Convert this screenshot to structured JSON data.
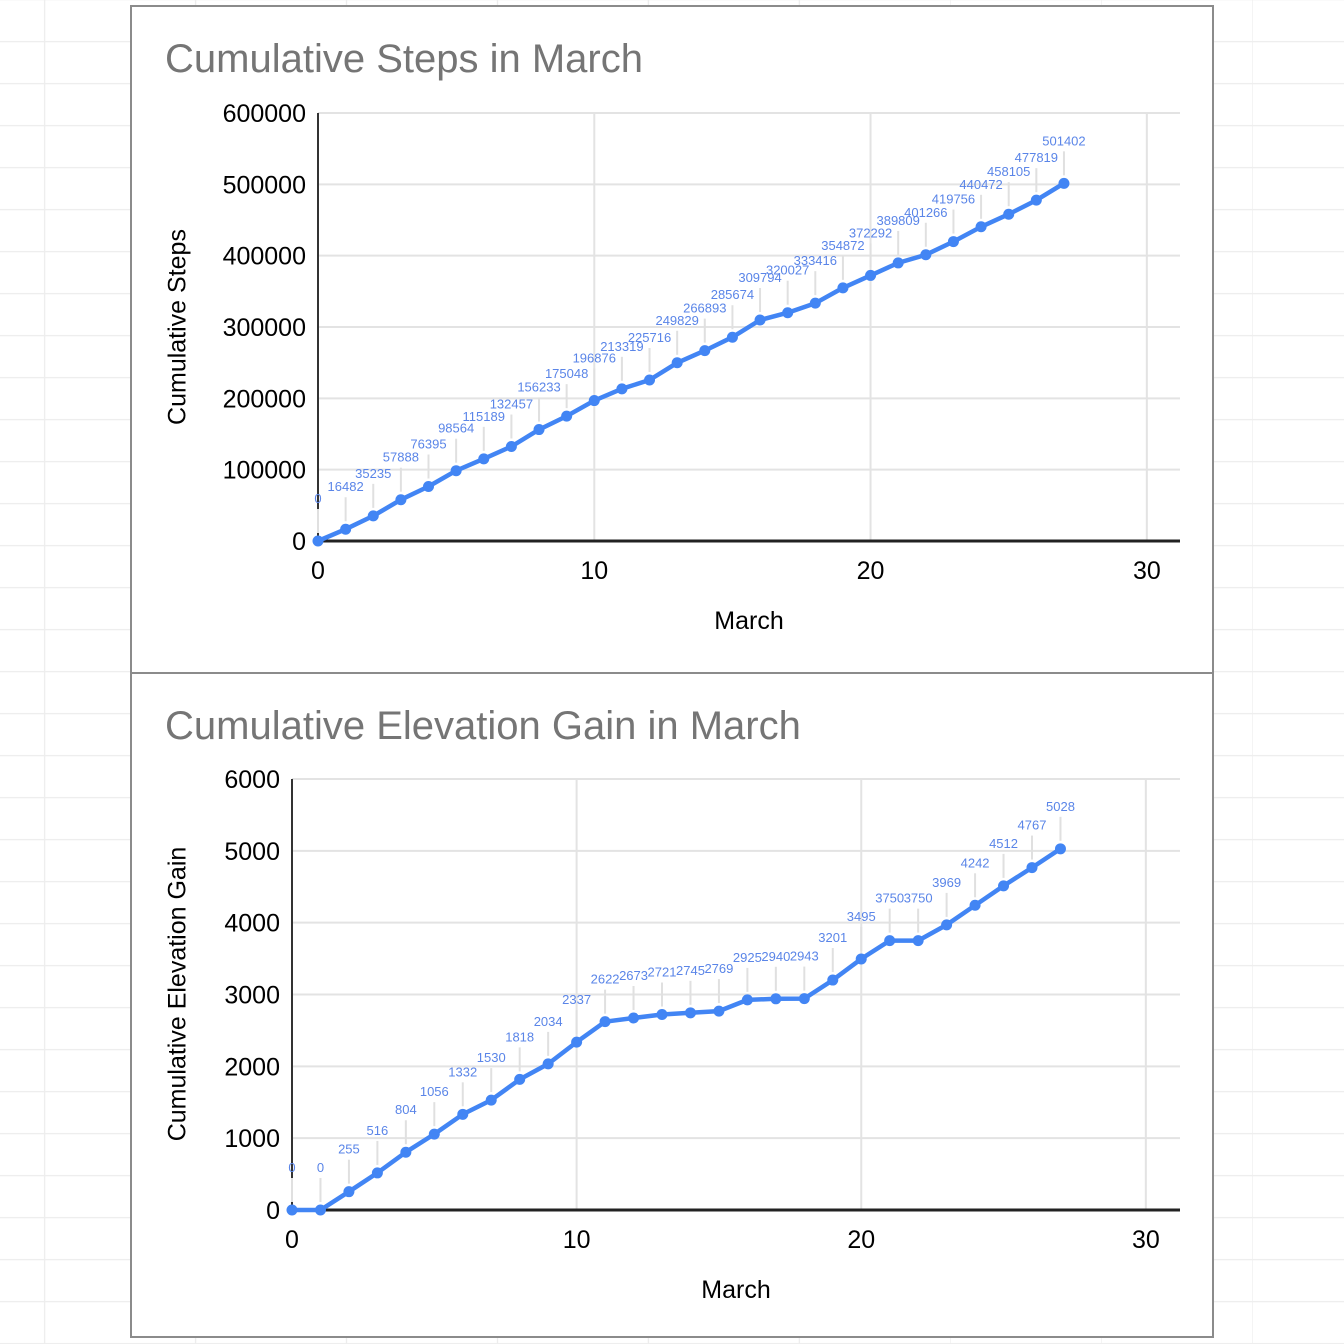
{
  "styles": {
    "series_color": "#4285f4",
    "data_label_color": "#5a85e8",
    "title_color": "#757575",
    "gridline_color": "#e3e3e3",
    "leader_line_color": "#e0e0e0",
    "axis_line_color": "#333333",
    "tick_label_color": "#000000",
    "card_border_color": "#8b8b8b"
  },
  "chart_data": [
    {
      "type": "line",
      "title": "Cumulative Steps in March",
      "xlabel": "March",
      "ylabel": "Cumulative Steps",
      "x": [
        0,
        1,
        2,
        3,
        4,
        5,
        6,
        7,
        8,
        9,
        10,
        11,
        12,
        13,
        14,
        15,
        16,
        17,
        18,
        19,
        20,
        21,
        22,
        23,
        24,
        25,
        26,
        27
      ],
      "values": [
        0,
        16482,
        35235,
        57888,
        76395,
        98564,
        115189,
        132457,
        156233,
        175048,
        196876,
        213319,
        225716,
        249829,
        266893,
        285674,
        309794,
        320027,
        333416,
        354872,
        372292,
        389809,
        401266,
        419756,
        440472,
        458105,
        477819,
        501402
      ],
      "x_ticks": [
        0,
        10,
        20,
        30
      ],
      "y_ticks": [
        0,
        100000,
        200000,
        300000,
        400000,
        500000,
        600000
      ],
      "xlim": [
        0,
        31.2
      ],
      "ylim": [
        0,
        600000
      ],
      "grid": true,
      "legend": "none",
      "data_labels": true
    },
    {
      "type": "line",
      "title": "Cumulative Elevation Gain in March",
      "xlabel": "March",
      "ylabel": "Cumulative Elevation Gain",
      "x": [
        0,
        1,
        2,
        3,
        4,
        5,
        6,
        7,
        8,
        9,
        10,
        11,
        12,
        13,
        14,
        15,
        16,
        17,
        18,
        19,
        20,
        21,
        22,
        23,
        24,
        25,
        26,
        27
      ],
      "values": [
        0,
        0,
        255,
        516,
        804,
        1056,
        1332,
        1530,
        1818,
        2034,
        2337,
        2622,
        2673,
        2721,
        2745,
        2769,
        2925,
        2940,
        2943,
        3201,
        3495,
        3750,
        3750,
        3969,
        4242,
        4512,
        4767,
        5028
      ],
      "x_ticks": [
        0,
        10,
        20,
        30
      ],
      "y_ticks": [
        0,
        1000,
        2000,
        3000,
        4000,
        5000,
        6000
      ],
      "xlim": [
        0,
        31.2
      ],
      "ylim": [
        0,
        6000
      ],
      "grid": true,
      "legend": "none",
      "data_labels": true
    }
  ]
}
